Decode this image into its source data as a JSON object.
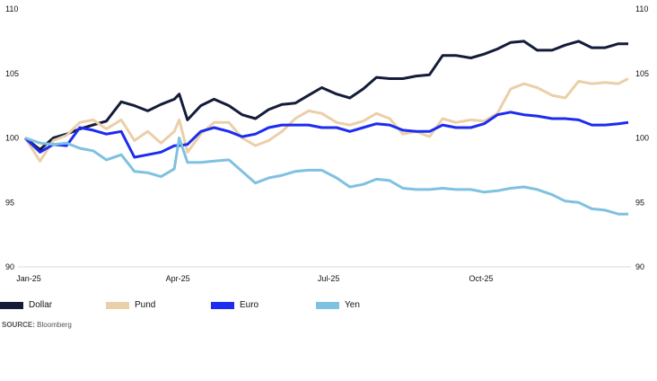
{
  "chart_data": {
    "type": "line",
    "title": "",
    "xlabel": "",
    "ylabel": "",
    "ylim": [
      90,
      110
    ],
    "yticks": [
      "90",
      "95",
      "100",
      "105",
      "110"
    ],
    "xticks": [
      {
        "label": "Jan-25",
        "date": "2025-01-01"
      },
      {
        "label": "Apr-25",
        "date": "2025-04-01"
      },
      {
        "label": "Jul-25",
        "date": "2025-07-01"
      },
      {
        "label": "Oct-25",
        "date": "2025-10-01"
      }
    ],
    "grid": false,
    "legend_position": "bottom",
    "x": [
      "2025-01-01",
      "2025-01-10",
      "2025-01-18",
      "2025-01-26",
      "2025-02-03",
      "2025-02-11",
      "2025-02-19",
      "2025-02-28",
      "2025-03-08",
      "2025-03-16",
      "2025-03-24",
      "2025-04-01",
      "2025-04-04",
      "2025-04-09",
      "2025-04-17",
      "2025-04-25",
      "2025-05-04",
      "2025-05-12",
      "2025-05-20",
      "2025-05-28",
      "2025-06-05",
      "2025-06-13",
      "2025-06-21",
      "2025-06-29",
      "2025-07-08",
      "2025-07-16",
      "2025-07-24",
      "2025-08-01",
      "2025-08-09",
      "2025-08-17",
      "2025-08-25",
      "2025-09-02",
      "2025-09-10",
      "2025-09-18",
      "2025-09-27",
      "2025-10-05",
      "2025-10-13",
      "2025-10-21",
      "2025-10-29",
      "2025-11-06",
      "2025-11-15",
      "2025-11-23",
      "2025-12-01",
      "2025-12-09",
      "2025-12-17",
      "2025-12-25",
      "2025-12-31"
    ],
    "series": [
      {
        "name": "Dollar",
        "color": "#141c3a",
        "values": [
          100,
          99.1,
          100.0,
          100.3,
          100.7,
          101.0,
          101.3,
          102.8,
          102.5,
          102.1,
          102.6,
          103.0,
          103.4,
          101.4,
          102.5,
          103.0,
          102.5,
          101.8,
          101.5,
          102.2,
          102.6,
          102.7,
          103.3,
          103.9,
          103.4,
          103.1,
          103.8,
          104.7,
          104.6,
          104.6,
          104.8,
          104.9,
          106.4,
          106.4,
          106.2,
          106.5,
          106.9,
          107.4,
          107.5,
          106.8,
          106.8,
          107.2,
          107.5,
          107.0,
          107.0,
          107.3,
          107.3
        ]
      },
      {
        "name": "Pund",
        "color": "#ebcfa8",
        "values": [
          100,
          98.2,
          99.8,
          100.2,
          101.2,
          101.4,
          100.7,
          101.4,
          99.8,
          100.5,
          99.6,
          100.5,
          101.4,
          98.9,
          100.3,
          101.2,
          101.2,
          100.0,
          99.4,
          99.8,
          100.5,
          101.5,
          102.1,
          101.9,
          101.2,
          101.0,
          101.3,
          101.9,
          101.5,
          100.3,
          100.5,
          100.1,
          101.5,
          101.2,
          101.4,
          101.3,
          101.9,
          103.8,
          104.2,
          103.9,
          103.3,
          103.1,
          104.4,
          104.2,
          104.3,
          104.2,
          104.6
        ]
      },
      {
        "name": "Euro",
        "color": "#1c2cf0",
        "values": [
          100,
          98.9,
          99.5,
          99.4,
          100.8,
          100.6,
          100.3,
          100.5,
          98.5,
          98.7,
          98.9,
          99.4,
          99.4,
          99.5,
          100.5,
          100.8,
          100.5,
          100.1,
          100.3,
          100.8,
          101.0,
          101.0,
          101.0,
          100.8,
          100.8,
          100.5,
          100.8,
          101.1,
          101.0,
          100.6,
          100.5,
          100.5,
          101.0,
          100.8,
          100.8,
          101.1,
          101.8,
          102.0,
          101.8,
          101.7,
          101.5,
          101.5,
          101.4,
          101.0,
          101.0,
          101.1,
          101.2
        ]
      },
      {
        "name": "Yen",
        "color": "#7fc1e0",
        "values": [
          100,
          99.6,
          99.5,
          99.6,
          99.2,
          99.0,
          98.3,
          98.7,
          97.4,
          97.3,
          97.0,
          97.6,
          100.0,
          98.1,
          98.1,
          98.2,
          98.3,
          97.4,
          96.5,
          96.9,
          97.1,
          97.4,
          97.5,
          97.5,
          96.9,
          96.2,
          96.4,
          96.8,
          96.7,
          96.1,
          96.0,
          96.0,
          96.1,
          96.0,
          96.0,
          95.8,
          95.9,
          96.1,
          96.2,
          96.0,
          95.6,
          95.1,
          95.0,
          94.5,
          94.4,
          94.1,
          94.1
        ]
      }
    ]
  },
  "source": {
    "label": "SOURCE:",
    "text": "Bloomberg"
  }
}
